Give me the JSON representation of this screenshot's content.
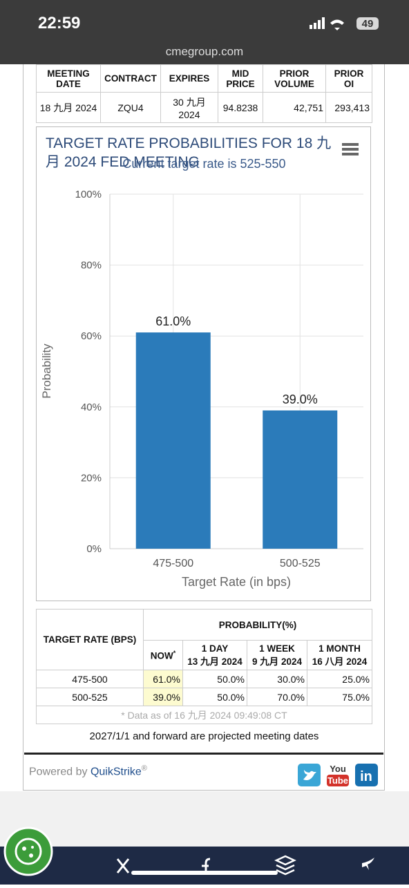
{
  "status_bar": {
    "time": "22:59",
    "battery": "49",
    "url": "cmegroup.com"
  },
  "contract_table": {
    "headers": [
      "MEETING DATE",
      "CONTRACT",
      "EXPIRES",
      "MID PRICE",
      "PRIOR VOLUME",
      "PRIOR OI"
    ],
    "rows": [
      [
        "18 九月 2024",
        "ZQU4",
        "30 九月 2024",
        "94.8238",
        "42,751",
        "293,413"
      ]
    ]
  },
  "chart_data": {
    "type": "bar",
    "title": "TARGET RATE PROBABILITIES FOR 18 九月 2024 FED MEETING",
    "subtitle": "Current target rate is 525-550",
    "x_label": "Target Rate (in bps)",
    "y_label": "Probability",
    "categories": [
      "475-500",
      "500-525"
    ],
    "values": [
      61.0,
      39.0
    ],
    "value_labels": [
      "61.0%",
      "39.0%"
    ],
    "color": "#2b7bba",
    "ylim": [
      0,
      100
    ],
    "yticks": [
      {
        "value": 0,
        "label": "0%"
      },
      {
        "value": 20,
        "label": "20%"
      },
      {
        "value": 40,
        "label": "40%"
      },
      {
        "value": 60,
        "label": "60%"
      },
      {
        "value": 80,
        "label": "80%"
      },
      {
        "value": 100,
        "label": "100%"
      }
    ],
    "grid": true
  },
  "probability_table": {
    "target_rate_header": "TARGET RATE (BPS)",
    "probability_header": "PROBABILITY(%)",
    "columns": [
      {
        "label": "NOW",
        "note": "*"
      },
      {
        "label": "1 DAY",
        "date": "13 九月 2024"
      },
      {
        "label": "1 WEEK",
        "date": "9 九月 2024"
      },
      {
        "label": "1 MONTH",
        "date": "16 八月 2024"
      }
    ],
    "rows": [
      [
        "475-500",
        "61.0%",
        "50.0%",
        "30.0%",
        "25.0%"
      ],
      [
        "500-525",
        "39.0%",
        "50.0%",
        "70.0%",
        "75.0%"
      ]
    ],
    "note": "* Data as of 16 九月 2024 09:49:08 CT"
  },
  "footer_note": "2027/1/1 and forward are projected meeting dates",
  "powered_by": {
    "prefix": "Powered by",
    "brand": "QuikStrike",
    "mark": "®"
  },
  "social": [
    "You",
    "Tube",
    "in"
  ]
}
